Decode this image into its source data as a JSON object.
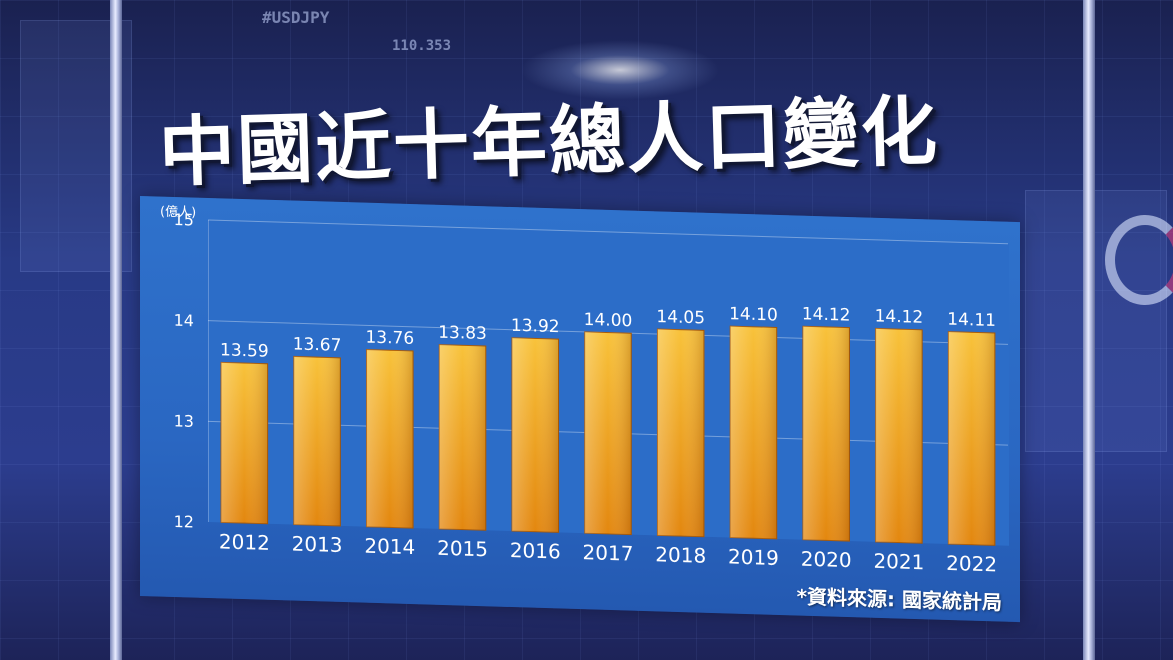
{
  "title": "中國近十年總人口變化",
  "source": "*資料來源: 國家統計局",
  "background": {
    "ticker_text": "#USDJPY",
    "ticker_value": "110.353"
  },
  "colors": {
    "bar_top": "#f8c23a",
    "bar_bottom": "#e3870f",
    "board": "#2c6dc8",
    "text": "#ffffff"
  },
  "chart_data": {
    "type": "bar",
    "title": "中國近十年總人口變化",
    "ylabel": "(億人)",
    "xlabel": "",
    "ylim": [
      12,
      15
    ],
    "yticks": [
      12,
      13,
      14,
      15
    ],
    "grid": true,
    "categories": [
      "2012",
      "2013",
      "2014",
      "2015",
      "2016",
      "2017",
      "2018",
      "2019",
      "2020",
      "2021",
      "2022"
    ],
    "values": [
      13.59,
      13.67,
      13.76,
      13.83,
      13.92,
      14.0,
      14.05,
      14.1,
      14.12,
      14.12,
      14.11
    ],
    "value_labels": [
      "13.59",
      "13.67",
      "13.76",
      "13.83",
      "13.92",
      "14.00",
      "14.05",
      "14.10",
      "14.12",
      "14.12",
      "14.11"
    ]
  }
}
